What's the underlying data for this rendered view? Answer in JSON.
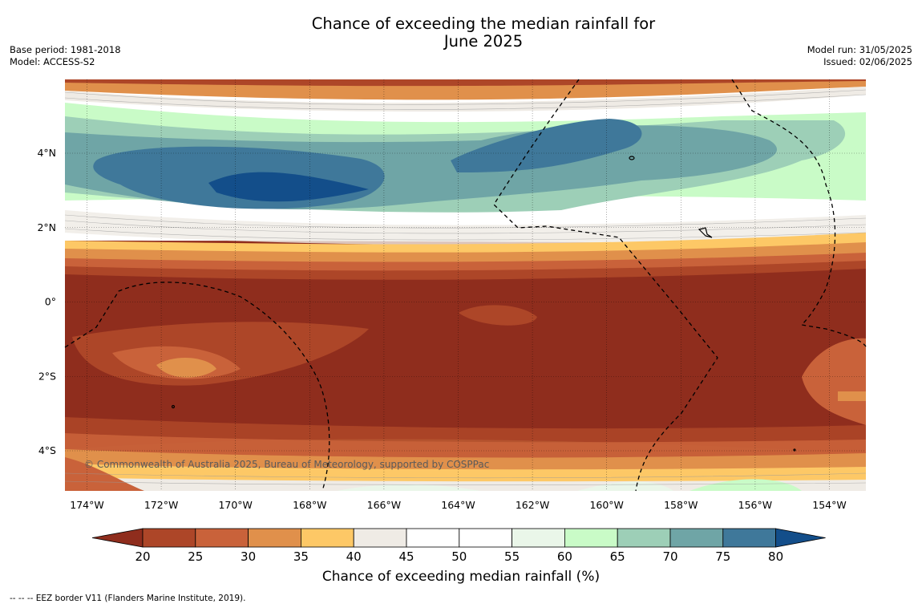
{
  "title_line1": "Chance of exceeding the median rainfall for",
  "title_line2": "June 2025",
  "meta_left": {
    "base_period": "Base period: 1981-2018",
    "model": "Model: ACCESS-S2"
  },
  "meta_right": {
    "model_run": "Model run: 31/05/2025",
    "issued": "Issued: 02/06/2025"
  },
  "map": {
    "lon_ticks": [
      "174°W",
      "172°W",
      "170°W",
      "168°W",
      "166°W",
      "164°W",
      "162°W",
      "160°W",
      "158°W",
      "156°W",
      "154°W"
    ],
    "lat_ticks": [
      "4°N",
      "2°N",
      "0°",
      "2°S",
      "4°S"
    ],
    "copyright": "© Commonwealth of Australia 2025, Bureau of Meteorology, supported by COSPPac"
  },
  "colorbar": {
    "ticks": [
      "20",
      "25",
      "30",
      "35",
      "40",
      "45",
      "50",
      "55",
      "60",
      "65",
      "70",
      "75",
      "80"
    ],
    "colors": [
      "#8f2d1d",
      "#ad4628",
      "#c9623a",
      "#e0904b",
      "#fdc866",
      "#efebe5",
      "#ffffff",
      "#ffffff",
      "#eaf6e9",
      "#c9fbc7",
      "#9dcfb7",
      "#6fa5a6",
      "#3f789a",
      "#134e8a"
    ],
    "label": "Chance of exceeding median rainfall (%)"
  },
  "footer": "--  --  -- EEZ border V11 (Flanders Marine Institute, 2019)."
}
